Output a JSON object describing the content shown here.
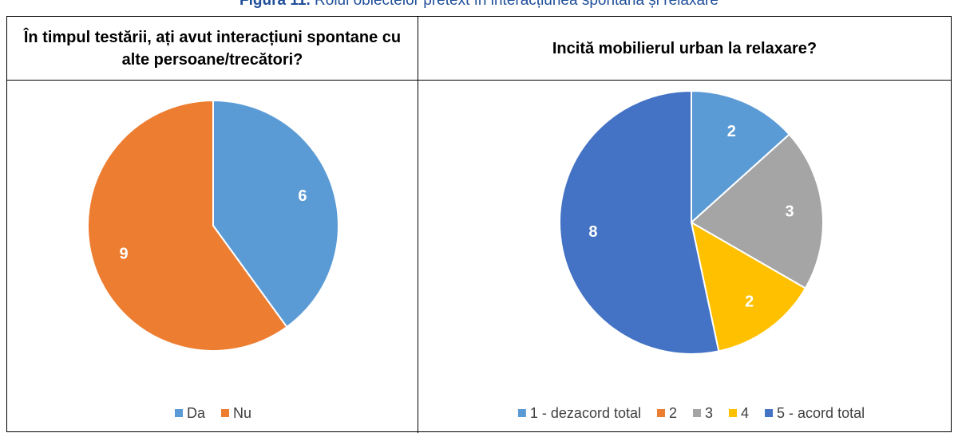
{
  "caption_label": "Figura 11.",
  "caption": "Rolul obiectelor pretext în interacțiunea spontană și relaxare",
  "chart_data": [
    {
      "type": "pie",
      "title": "În timpul testării, ați avut interacțiuni spontane cu alte persoane/trecători?",
      "categories": [
        "Da",
        "Nu"
      ],
      "values": [
        6,
        9
      ],
      "colors": [
        "#5b9bd5",
        "#ed7d31"
      ],
      "legend": "bottom"
    },
    {
      "type": "pie",
      "title": "Incită mobilierul urban la relaxare?",
      "categories": [
        "1 - dezacord total",
        "2",
        "3",
        "4",
        "5 - acord total"
      ],
      "values": [
        2,
        0,
        3,
        2,
        8
      ],
      "colors": [
        "#5b9bd5",
        "#ed7d31",
        "#a5a5a5",
        "#ffc000",
        "#4472c4"
      ],
      "legend": "bottom"
    }
  ]
}
